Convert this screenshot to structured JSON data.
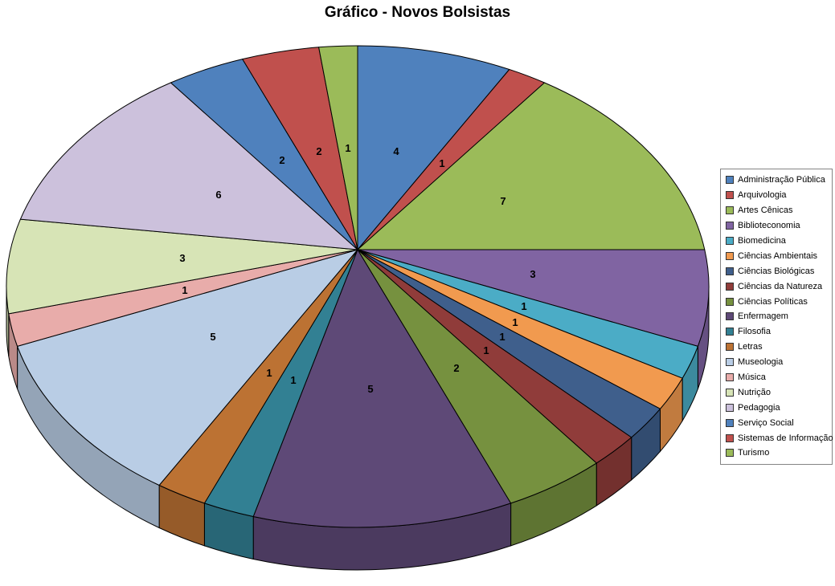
{
  "chart_data": {
    "type": "pie",
    "style": "3d",
    "title": "Gráfico - Novos Bolsistas",
    "total": 48,
    "data_labels": "value",
    "legend_position": "right",
    "background": "#FFFFFF",
    "series": [
      {
        "name": "Administração Pública",
        "value": 4,
        "color": "#4F81BD"
      },
      {
        "name": "Arquivologia",
        "value": 1,
        "color": "#C0504D"
      },
      {
        "name": "Artes Cênicas",
        "value": 7,
        "color": "#9BBB59"
      },
      {
        "name": "Biblioteconomia",
        "value": 3,
        "color": "#8064A2"
      },
      {
        "name": "Biomedicina",
        "value": 1,
        "color": "#4BACC6"
      },
      {
        "name": "Ciências Ambientais",
        "value": 1,
        "color": "#F19A4F"
      },
      {
        "name": "Ciências Biológicas",
        "value": 1,
        "color": "#3F5F8C"
      },
      {
        "name": "Ciências da Natureza",
        "value": 1,
        "color": "#903C3A"
      },
      {
        "name": "Ciências Políticas",
        "value": 2,
        "color": "#76913F"
      },
      {
        "name": "Enfermagem",
        "value": 5,
        "color": "#5E4977"
      },
      {
        "name": "Filosofia",
        "value": 1,
        "color": "#328093"
      },
      {
        "name": "Letras",
        "value": 1,
        "color": "#BC7233"
      },
      {
        "name": "Museologia",
        "value": 5,
        "color": "#B9CDE5"
      },
      {
        "name": "Música",
        "value": 1,
        "color": "#E8ACAA"
      },
      {
        "name": "Nutrição",
        "value": 3,
        "color": "#D7E4B6"
      },
      {
        "name": "Pedagogia",
        "value": 6,
        "color": "#CCC1DC"
      },
      {
        "name": "Serviço Social",
        "value": 2,
        "color": "#4F81BD"
      },
      {
        "name": "Sistemas de Informação",
        "value": 2,
        "color": "#C0504D"
      },
      {
        "name": "Turismo",
        "value": 1,
        "color": "#9BBB59"
      }
    ]
  }
}
